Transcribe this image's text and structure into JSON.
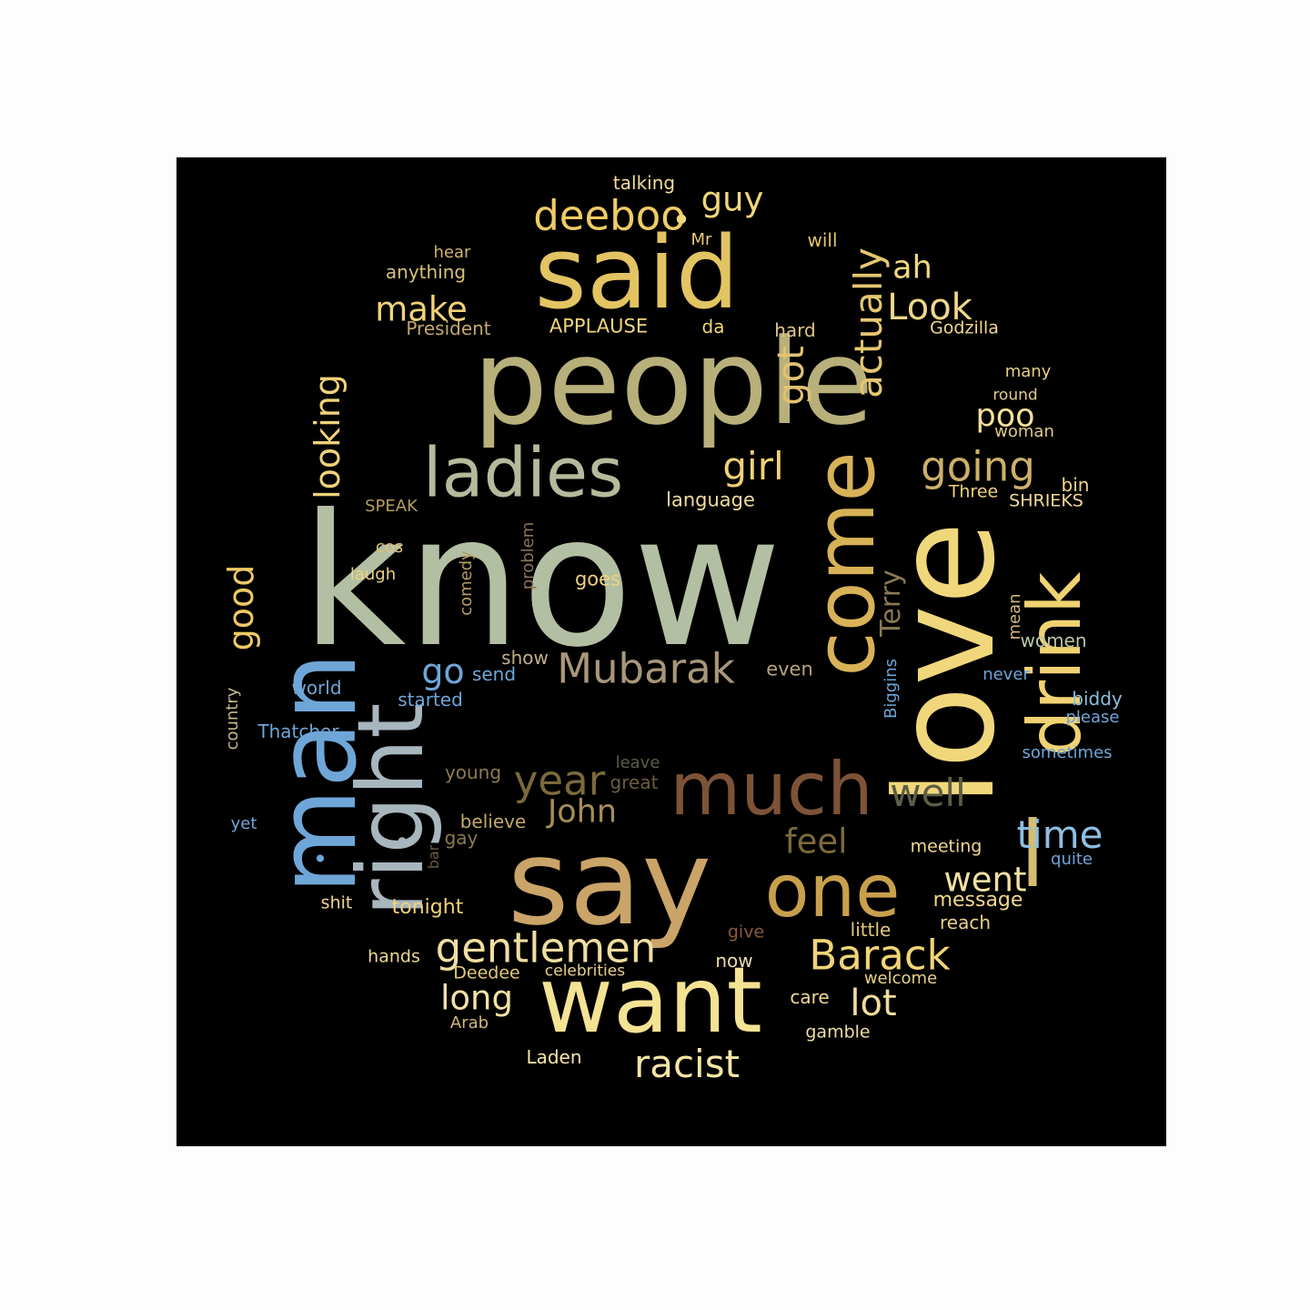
{
  "wordcloud": {
    "words": [
      {
        "text": "know",
        "color": "#b3bfa3"
      },
      {
        "text": "people",
        "color": "#b8b07a"
      },
      {
        "text": "say",
        "color": "#caa468"
      },
      {
        "text": "love",
        "color": "#f1d77b"
      },
      {
        "text": "said",
        "color": "#e3c462"
      },
      {
        "text": "man",
        "color": "#6fa6d8"
      },
      {
        "text": "want",
        "color": "#f5e394"
      },
      {
        "text": "right",
        "color": "#a8b6be"
      },
      {
        "text": "come",
        "color": "#d8b257"
      },
      {
        "text": "much",
        "color": "#7d5337"
      },
      {
        "text": "drink",
        "color": "#f0d272"
      },
      {
        "text": "one",
        "color": "#c8a04c"
      },
      {
        "text": "l",
        "color": "#d7bd72"
      },
      {
        "text": "ladies",
        "color": "#b4bb9c"
      },
      {
        "text": "Mubarak",
        "color": "#a89779"
      },
      {
        "text": "deeboo",
        "color": "#efcc65"
      },
      {
        "text": "Barack",
        "color": "#f1d477"
      },
      {
        "text": "gentlemen",
        "color": "#f0dea1"
      },
      {
        "text": "racist",
        "color": "#f6e6a6"
      },
      {
        "text": "year",
        "color": "#7b6a3b"
      },
      {
        "text": "well",
        "color": "#5c5e46"
      },
      {
        "text": "time",
        "color": "#8ebfe0"
      },
      {
        "text": "going",
        "color": "#cdb06a"
      },
      {
        "text": "girl",
        "color": "#f1d077"
      },
      {
        "text": "actually",
        "color": "#e5c770"
      },
      {
        "text": "looking",
        "color": "#f0d27a"
      },
      {
        "text": "Look",
        "color": "#f0d88b"
      },
      {
        "text": "good",
        "color": "#efc964"
      },
      {
        "text": "got",
        "color": "#e1c273"
      },
      {
        "text": "John",
        "color": "#a68d57"
      },
      {
        "text": "feel",
        "color": "#7b6a3b"
      },
      {
        "text": "went",
        "color": "#f1e0a2"
      },
      {
        "text": "lot",
        "color": "#f0dc9c"
      },
      {
        "text": "long",
        "color": "#f3e2a6"
      },
      {
        "text": "guy",
        "color": "#f0d77a"
      },
      {
        "text": "make",
        "color": "#f0d27a"
      },
      {
        "text": "poo",
        "color": "#f4e09a"
      },
      {
        "text": "ah",
        "color": "#f1d87c"
      },
      {
        "text": "go",
        "color": "#6fa6d8"
      },
      {
        "text": "Terry",
        "color": "#8a7a52"
      },
      {
        "text": "talking",
        "color": "#f2dd9b"
      },
      {
        "text": "hear",
        "color": "#d0b46c"
      },
      {
        "text": "Mr",
        "color": "#e9cd74"
      },
      {
        "text": "will",
        "color": "#e2c56a"
      },
      {
        "text": "anything",
        "color": "#d8c07a"
      },
      {
        "text": "President",
        "color": "#c2a86b"
      },
      {
        "text": "APPLAUSE",
        "color": "#f2d57a"
      },
      {
        "text": "da",
        "color": "#f0d57a"
      },
      {
        "text": "hard",
        "color": "#dfc58a"
      },
      {
        "text": "Godzilla",
        "color": "#f0d890"
      },
      {
        "text": "many",
        "color": "#e7cf8b"
      },
      {
        "text": "round",
        "color": "#e3cc8e"
      },
      {
        "text": "woman",
        "color": "#e0c98a"
      },
      {
        "text": "bin",
        "color": "#f1d48b"
      },
      {
        "text": "Three",
        "color": "#f0d27a"
      },
      {
        "text": "SHRIEKS",
        "color": "#f1d99a"
      },
      {
        "text": "SPEAK",
        "color": "#b59c63"
      },
      {
        "text": "language",
        "color": "#f0dc9c"
      },
      {
        "text": "problem",
        "color": "#8a7455"
      },
      {
        "text": "comedy",
        "color": "#b59c63"
      },
      {
        "text": "cos",
        "color": "#e0c07a"
      },
      {
        "text": "laugh",
        "color": "#f0d37e"
      },
      {
        "text": "goes",
        "color": "#f0d37e"
      },
      {
        "text": "show",
        "color": "#c2ae8a"
      },
      {
        "text": "send",
        "color": "#6fa6d8"
      },
      {
        "text": "even",
        "color": "#b8a27a"
      },
      {
        "text": "world",
        "color": "#6fa6d8"
      },
      {
        "text": "started",
        "color": "#6fa6d8"
      },
      {
        "text": "country",
        "color": "#c4b98c"
      },
      {
        "text": "Thatcher",
        "color": "#6fa6d8"
      },
      {
        "text": "mean",
        "color": "#d2b87a"
      },
      {
        "text": "women",
        "color": "#b8c6a8"
      },
      {
        "text": "never",
        "color": "#6fa6d8"
      },
      {
        "text": "Biggins",
        "color": "#6fa6d8"
      },
      {
        "text": "biddy",
        "color": "#8ebfe0"
      },
      {
        "text": "please",
        "color": "#6fa6d8"
      },
      {
        "text": "sometimes",
        "color": "#6fa6d8"
      },
      {
        "text": "leave",
        "color": "#5c5e46"
      },
      {
        "text": "great",
        "color": "#6b5e3e"
      },
      {
        "text": "young",
        "color": "#8a7a52"
      },
      {
        "text": "believe",
        "color": "#c2a86b"
      },
      {
        "text": "gay",
        "color": "#8a7a52"
      },
      {
        "text": "bar",
        "color": "#6b5e3e"
      },
      {
        "text": "yet",
        "color": "#6fa6d8"
      },
      {
        "text": "meeting",
        "color": "#f0d890"
      },
      {
        "text": "quite",
        "color": "#6fa6d8"
      },
      {
        "text": "message",
        "color": "#f0d890"
      },
      {
        "text": "shit",
        "color": "#f0d890"
      },
      {
        "text": "tonight",
        "color": "#f0d27a"
      },
      {
        "text": "give",
        "color": "#8a5a3c"
      },
      {
        "text": "little",
        "color": "#e3c97a"
      },
      {
        "text": "reach",
        "color": "#e8d08a"
      },
      {
        "text": "hands",
        "color": "#f0d890"
      },
      {
        "text": "now",
        "color": "#e9dcae"
      },
      {
        "text": "Deedee",
        "color": "#e3c97a"
      },
      {
        "text": "celebrities",
        "color": "#e8d08a"
      },
      {
        "text": "welcome",
        "color": "#e8d08a"
      },
      {
        "text": "care",
        "color": "#f0d890"
      },
      {
        "text": "Arab",
        "color": "#d2b87a"
      },
      {
        "text": "gamble",
        "color": "#f0dea1"
      },
      {
        "text": "Laden",
        "color": "#f6e6a6"
      },
      {
        "text": "•",
        "color": "#f1d77b"
      },
      {
        "text": "•",
        "color": "#a8b6be"
      },
      {
        "text": "•",
        "color": "#6fa6d8"
      }
    ]
  }
}
